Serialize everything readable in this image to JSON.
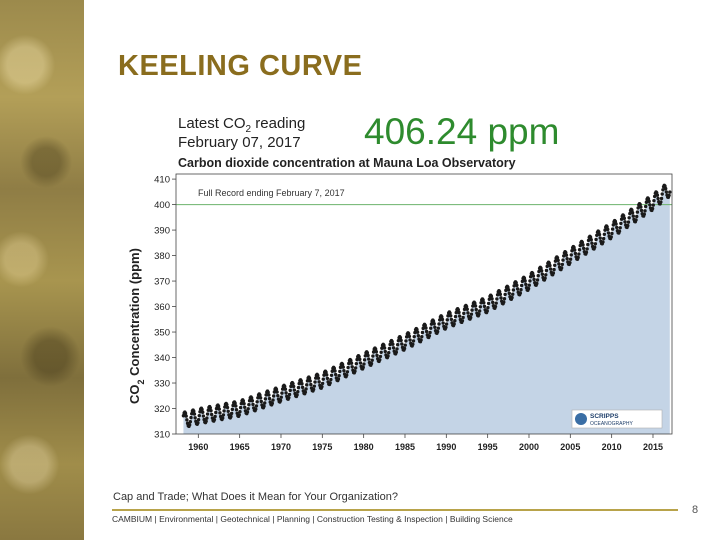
{
  "slide": {
    "title": "KEELING CURVE",
    "caption": "Cap and Trade; What Does it Mean for Your Organization?",
    "footer": "CAMBIUM  |  Environmental  | Geotechnical | Planning  | Construction Testing & Inspection | Building Science",
    "page_number": "8"
  },
  "chart_data": {
    "type": "scatter",
    "header": {
      "latest_label_prefix": "Latest CO",
      "latest_label_sub": "2",
      "latest_label_suffix": " reading",
      "latest_date": "February 07, 2017",
      "latest_value": "406.24 ppm"
    },
    "title": "Carbon dioxide concentration at Mauna Loa Observatory",
    "record_label": "Full Record ending February 7, 2017",
    "ylabel_prefix": "CO",
    "ylabel_sub": "2",
    "ylabel_suffix": " Concentration (ppm)",
    "xlim": [
      1957.3,
      2017.3
    ],
    "ylim": [
      310,
      412
    ],
    "x_ticks": [
      1960,
      1965,
      1970,
      1975,
      1980,
      1985,
      1990,
      1995,
      2000,
      2005,
      2010,
      2015
    ],
    "y_ticks": [
      310,
      320,
      330,
      340,
      350,
      360,
      370,
      380,
      390,
      400,
      410
    ],
    "reference_line": 400,
    "trend_points": {
      "x": [
        1958,
        1960,
        1965,
        1970,
        1975,
        1980,
        1985,
        1990,
        1995,
        2000,
        2005,
        2010,
        2015,
        2017
      ],
      "y": [
        315.3,
        316.9,
        320.0,
        325.7,
        331.1,
        338.7,
        346.1,
        354.4,
        360.8,
        369.6,
        379.8,
        389.9,
        401.0,
        406.2
      ]
    },
    "seasonal_amplitude": 3.0,
    "colors": {
      "fill": "#c4d4e6",
      "dots": "#1a1a1a",
      "reference": "#6cb36c",
      "latest_value": "#2e8b2e"
    },
    "logo_text": [
      "SCRIPPS",
      "OCEANOGRAPHY"
    ],
    "grid": false
  }
}
